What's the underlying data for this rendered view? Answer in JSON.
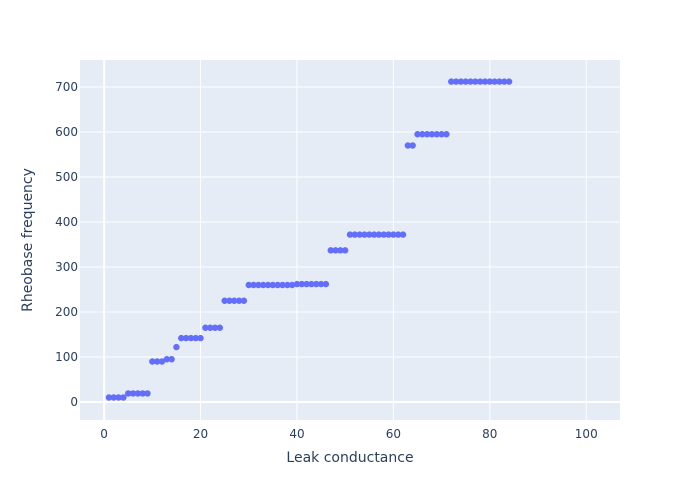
{
  "chart_data": {
    "type": "scatter",
    "title": "",
    "xlabel": "Leak conductance",
    "ylabel": "Rheobase frequency",
    "xlim": [
      -5,
      107
    ],
    "ylim": [
      -40,
      760
    ],
    "xticks": [
      0,
      20,
      40,
      60,
      80,
      100
    ],
    "yticks": [
      0,
      100,
      200,
      300,
      400,
      500,
      600,
      700
    ],
    "grid": true,
    "legend": "none",
    "colors": {
      "plot_bg": "#e5ecf6",
      "grid": "#ffffff",
      "marker": "#636efa",
      "text": "#2a3f5f"
    },
    "series": [
      {
        "x": [
          1,
          2,
          3,
          4,
          5,
          6,
          7,
          8,
          9,
          10,
          11,
          12,
          13,
          14,
          15,
          16,
          17,
          18,
          19,
          20,
          21,
          22,
          23,
          24,
          25,
          26,
          27,
          28,
          29,
          30,
          31,
          32,
          33,
          34,
          35,
          36,
          37,
          38,
          39,
          40,
          41,
          42,
          43,
          44,
          45,
          46,
          47,
          48,
          49,
          50,
          51,
          52,
          53,
          54,
          55,
          56,
          57,
          58,
          59,
          60,
          61,
          62,
          63,
          64,
          65,
          66,
          67,
          68,
          69,
          70,
          71,
          72,
          73,
          74,
          75,
          76,
          77,
          78,
          79,
          80,
          81,
          82,
          83,
          84
        ],
        "y": [
          10,
          10,
          10,
          10,
          19,
          19,
          19,
          19,
          19,
          90,
          90,
          90,
          95,
          95,
          122,
          142,
          142,
          142,
          142,
          142,
          165,
          165,
          165,
          165,
          225,
          225,
          225,
          225,
          225,
          260,
          260,
          260,
          260,
          260,
          260,
          260,
          260,
          260,
          260,
          262,
          262,
          262,
          262,
          262,
          262,
          262,
          337,
          337,
          337,
          337,
          372,
          372,
          372,
          372,
          372,
          372,
          372,
          372,
          372,
          372,
          372,
          372,
          570,
          570,
          595,
          595,
          595,
          595,
          595,
          595,
          595,
          712,
          712,
          712,
          712,
          712,
          712,
          712,
          712,
          712,
          712,
          712,
          712,
          712
        ]
      }
    ]
  }
}
